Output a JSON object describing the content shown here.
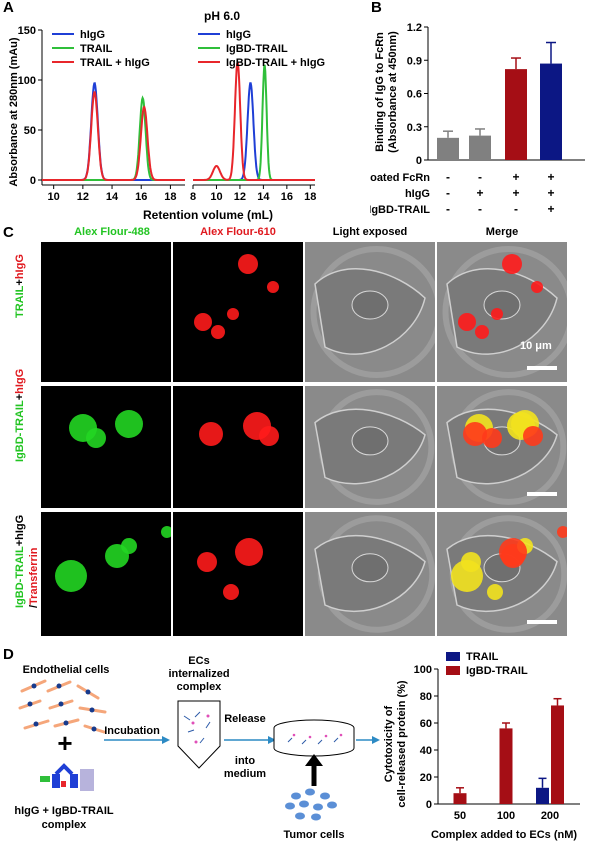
{
  "panel_labels": {
    "a": "A",
    "b": "B",
    "c": "C",
    "d": "D"
  },
  "panel_a": {
    "title": "pH 6.0",
    "ylabel": "Absorbance at 280nm (mAu)",
    "xlabel": "Retention volume (mL)",
    "left_legend": [
      "hIgG",
      "TRAIL",
      "TRAIL + hIgG"
    ],
    "right_legend": [
      "hIgG",
      "IgBD-TRAIL",
      "IgBD-TRAIL + hIgG"
    ],
    "colors": {
      "hIgG": "#1f3fd6",
      "TRAIL": "#2fbf3a",
      "mix": "#e8262b"
    }
  },
  "chart_data": [
    {
      "type": "line",
      "title": "pH 6.0",
      "xlabel": "Retention volume (mL)",
      "ylabel": "Absorbance at 280nm (mAu)",
      "ylim": [
        -5,
        150
      ],
      "yticks": [
        0,
        50,
        100,
        150
      ],
      "left_x_ticks": [
        10,
        12,
        14,
        16,
        18
      ],
      "right_x_ticks": [
        8,
        10,
        12,
        14,
        16,
        18
      ],
      "left_series": [
        {
          "name": "hIgG",
          "color": "#1f3fd6",
          "peaks": [
            {
              "x": 12.8,
              "h": 97,
              "w": 0.45
            }
          ]
        },
        {
          "name": "TRAIL",
          "color": "#2fbf3a",
          "peaks": [
            {
              "x": 16.1,
              "h": 82,
              "w": 0.4
            }
          ]
        },
        {
          "name": "TRAIL + hIgG",
          "color": "#e8262b",
          "peaks": [
            {
              "x": 12.8,
              "h": 88,
              "w": 0.45
            },
            {
              "x": 16.2,
              "h": 73,
              "w": 0.45
            }
          ]
        }
      ],
      "right_series": [
        {
          "name": "hIgG",
          "color": "#1f3fd6",
          "peaks": [
            {
              "x": 12.9,
              "h": 97,
              "w": 0.5
            }
          ]
        },
        {
          "name": "IgBD-TRAIL",
          "color": "#2fbf3a",
          "peaks": [
            {
              "x": 14.1,
              "h": 115,
              "w": 0.35
            }
          ]
        },
        {
          "name": "IgBD-TRAIL + hIgG",
          "color": "#e8262b",
          "peaks": [
            {
              "x": 10.0,
              "h": 14,
              "w": 0.6
            },
            {
              "x": 11.8,
              "h": 118,
              "w": 0.45
            }
          ]
        }
      ]
    },
    {
      "type": "bar",
      "ylabel": "Binding of IgG to FcRn (Absorbance at 450nm)",
      "ylim": [
        0,
        1.2
      ],
      "yticks": [
        "0",
        "0.3",
        "0.6",
        "0.9",
        "1.2"
      ],
      "values": [
        0.2,
        0.22,
        0.82,
        0.87
      ],
      "errors": [
        0.06,
        0.06,
        0.1,
        0.19
      ],
      "colors": [
        "#808080",
        "#808080",
        "#a50e15",
        "#0c1784"
      ],
      "row_labels": [
        "Coated FcRn",
        "hIgG",
        "IgBD-TRAIL"
      ],
      "row_signs": [
        [
          "-",
          "-",
          "+",
          "+"
        ],
        [
          "-",
          "+",
          "+",
          "+"
        ],
        [
          "-",
          "-",
          "-",
          "+"
        ]
      ]
    },
    {
      "type": "bar",
      "ylabel": "Cytotoxicity of cell-released protein (%)",
      "xlabel": "Complex added to ECs (nM)",
      "categories": [
        "50",
        "100",
        "200"
      ],
      "ylim": [
        0,
        100
      ],
      "yticks": [
        "0",
        "20",
        "40",
        "60",
        "80",
        "100"
      ],
      "series": [
        {
          "name": "TRAIL",
          "color": "#0c1784",
          "values": [
            null,
            null,
            12
          ],
          "errors": [
            null,
            null,
            7
          ]
        },
        {
          "name": "IgBD-TRAIL",
          "color": "#a50e15",
          "values": [
            8,
            56,
            73
          ],
          "errors": [
            4,
            4,
            5
          ]
        }
      ]
    }
  ],
  "panel_c": {
    "columns": [
      "Alex Flour-488",
      "Alex Flour-610",
      "Light exposed",
      "Merge"
    ],
    "column_colors": [
      "#22c422",
      "#e0191f",
      "#000000",
      "#000000"
    ],
    "rows": [
      {
        "parts": [
          {
            "t": "TRAIL",
            "c": "#22c422"
          },
          {
            "t": "+",
            "c": "#000000"
          },
          {
            "t": "hIgG",
            "c": "#e0191f"
          }
        ]
      },
      {
        "parts": [
          {
            "t": "IgBD-TRAIL",
            "c": "#22c422"
          },
          {
            "t": "+",
            "c": "#000000"
          },
          {
            "t": "hIgG",
            "c": "#e0191f"
          }
        ]
      },
      {
        "parts": [
          {
            "t": "IgBD-TRAIL",
            "c": "#22c422"
          },
          {
            "t": "+hIgG",
            "c": "#000000"
          }
        ],
        "parts2": [
          {
            "t": "/",
            "c": "#000000"
          },
          {
            "t": "Transferrin",
            "c": "#e0191f"
          }
        ]
      }
    ],
    "scale_bar": "10 μm"
  },
  "panel_d": {
    "endothelial": "Endothelial cells",
    "plus": "+",
    "incubation": "Incubation",
    "ecs_complex": [
      "ECs",
      "internalized",
      "complex"
    ],
    "release": [
      "Release",
      "into",
      "medium"
    ],
    "complex_label": [
      "hIgG + IgBD-TRAIL",
      "complex"
    ],
    "tumor_cells": "Tumor cells"
  }
}
